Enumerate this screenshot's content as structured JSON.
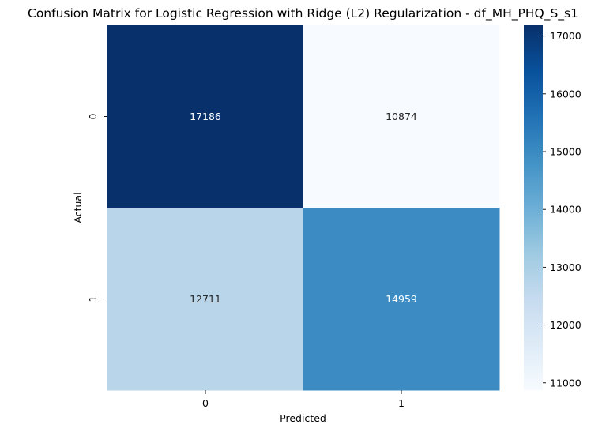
{
  "chart_data": {
    "type": "heatmap",
    "title": "Confusion Matrix for Logistic Regression with Ridge (L2) Regularization - df_MH_PHQ_S_s1",
    "xlabel": "Predicted",
    "ylabel": "Actual",
    "x_categories": [
      "0",
      "1"
    ],
    "y_categories": [
      "0",
      "1"
    ],
    "values": [
      [
        17186,
        10874
      ],
      [
        12711,
        14959
      ]
    ],
    "cell_labels": [
      [
        "17186",
        "10874"
      ],
      [
        "12711",
        "14959"
      ]
    ],
    "colormap": "Blues",
    "colorbar": {
      "min": 10874,
      "max": 17186,
      "ticks": [
        11000,
        12000,
        13000,
        14000,
        15000,
        16000,
        17000
      ],
      "tick_labels": [
        "11000",
        "12000",
        "13000",
        "14000",
        "15000",
        "16000",
        "17000"
      ]
    },
    "grid": false,
    "legend": "none"
  }
}
